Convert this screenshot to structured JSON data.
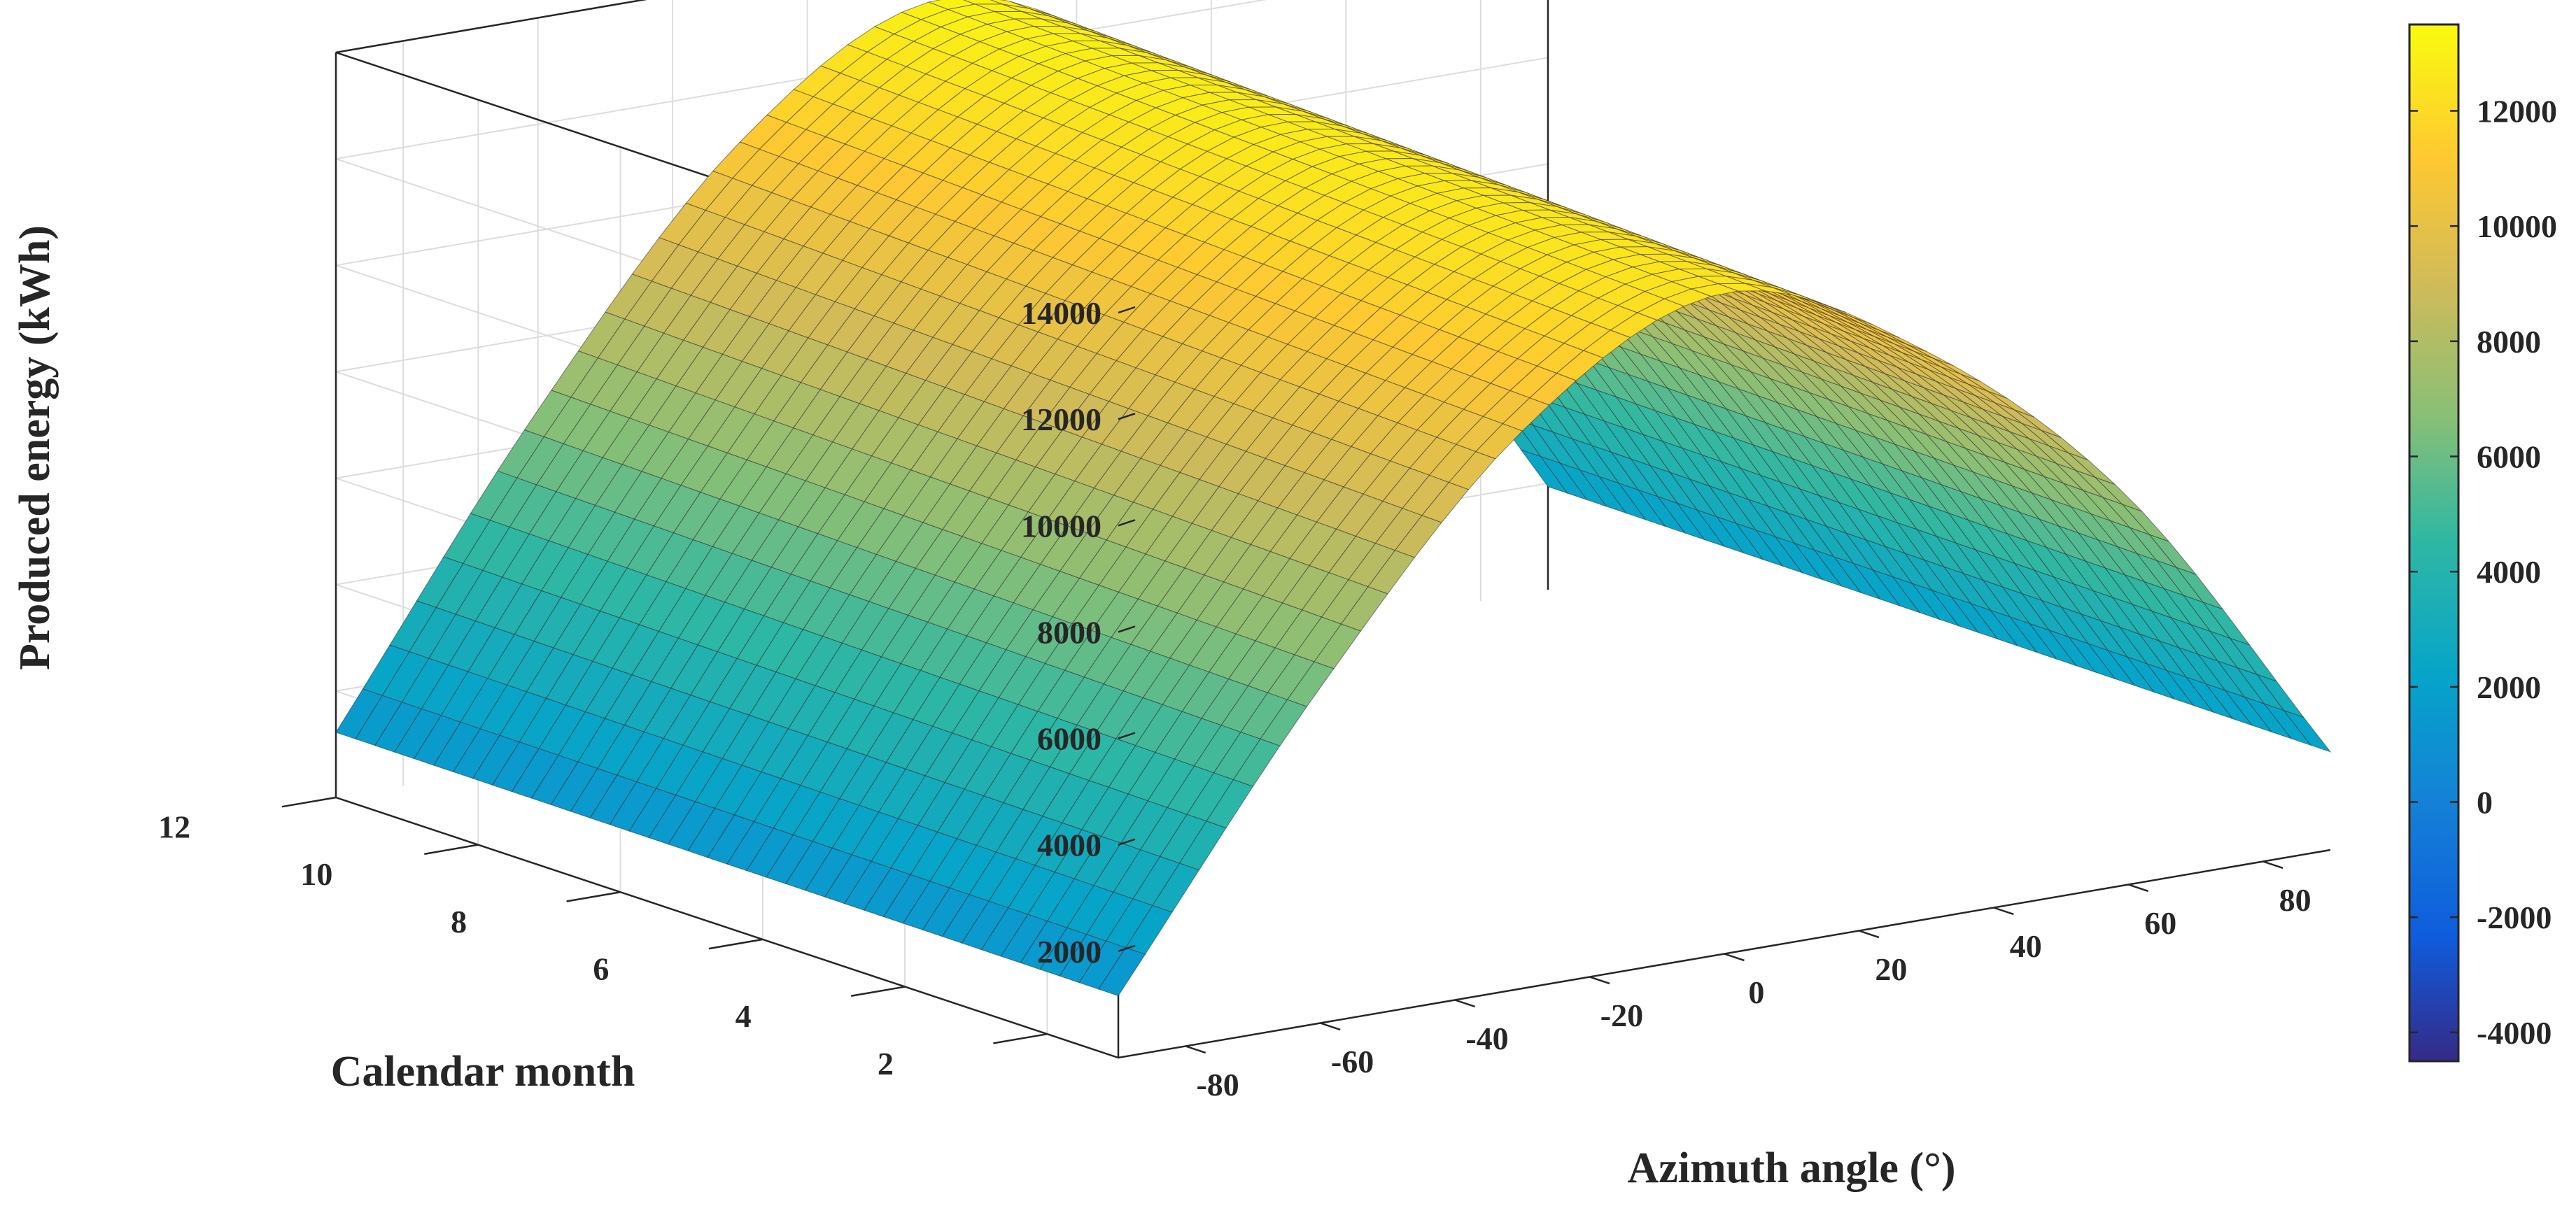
{
  "chart_data": {
    "type": "surface",
    "title": "",
    "xlabel": "Azimuth angle (°)",
    "ylabel": "Calendar month",
    "zlabel": "Produced energy (kWh)",
    "x": {
      "range": [
        -90,
        90
      ],
      "ticks": [
        -80,
        -60,
        -40,
        -20,
        0,
        20,
        40,
        60,
        80
      ],
      "tick_labels": [
        "-80",
        "-60",
        "-40",
        "-20",
        "0",
        "20",
        "40",
        "60",
        "80"
      ]
    },
    "y": {
      "range": [
        1,
        12
      ],
      "ticks": [
        2,
        4,
        6,
        8,
        10,
        12
      ],
      "tick_labels": [
        "2",
        "4",
        "6",
        "8",
        "10",
        "12"
      ]
    },
    "z": {
      "range": [
        0,
        14000
      ],
      "ticks": [
        2000,
        4000,
        6000,
        8000,
        10000,
        12000,
        14000
      ],
      "tick_labels": [
        "2000",
        "4000",
        "6000",
        "8000",
        "10000",
        "12000",
        "14000"
      ]
    },
    "colorbar": {
      "range": [
        -4500,
        13500
      ],
      "ticks": [
        -4000,
        -2000,
        0,
        2000,
        4000,
        6000,
        8000,
        10000,
        12000
      ],
      "tick_labels": [
        "-4000",
        "-2000",
        "0",
        "2000",
        "4000",
        "6000",
        "8000",
        "10000",
        "12000"
      ],
      "colormap": "parula"
    },
    "surface": {
      "azimuth_samples": [
        -90,
        -60,
        -30,
        0,
        30,
        60,
        90
      ],
      "month_samples": [
        1,
        3.5,
        6.5,
        9,
        12
      ],
      "energy_profile": [
        1200,
        6500,
        10800,
        12800,
        11000,
        7500,
        1900
      ],
      "grid_note": ""
    },
    "grid": true
  }
}
